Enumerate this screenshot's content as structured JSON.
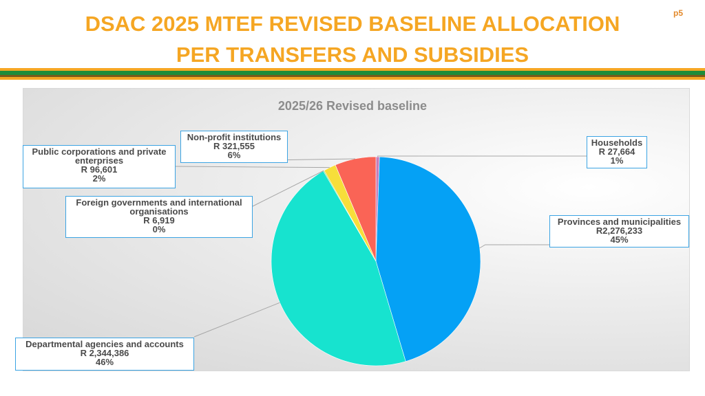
{
  "slide": {
    "title_line1": "DSAC 2025 MTEF REVISED BASELINE ALLOCATION",
    "title_line2": "PER TRANSFERS AND SUBSIDIES",
    "page": "p5",
    "stripe_colors": [
      "#f5a623",
      "#1e8c3a",
      "#7a5a1a"
    ]
  },
  "chart_data": {
    "type": "pie",
    "title": "2025/26 Revised baseline",
    "slices": [
      {
        "name": "Households",
        "value_label": "R 27,664",
        "pct_label": "1%",
        "value": 27664,
        "color": "#c77dba"
      },
      {
        "name": "Provinces and municipalities",
        "value_label": "R2,276,233",
        "pct_label": "45%",
        "value": 2276233,
        "color": "#05a1f5"
      },
      {
        "name": "Departmental agencies and accounts",
        "value_label": "R 2,344,386",
        "pct_label": "46%",
        "value": 2344386,
        "color": "#17e3cf"
      },
      {
        "name": "Foreign governments and international organisations",
        "value_label": "R 6,919",
        "pct_label": "0%",
        "value": 6919,
        "color": "#5fcf4a"
      },
      {
        "name": "Public corporations and private enterprises",
        "value_label": "R 96,601",
        "pct_label": "2%",
        "value": 96601,
        "color": "#f7de3a"
      },
      {
        "name": "Non-profit institutions",
        "value_label": "R 321,555",
        "pct_label": "6%",
        "value": 321555,
        "color": "#fa6456"
      }
    ]
  }
}
